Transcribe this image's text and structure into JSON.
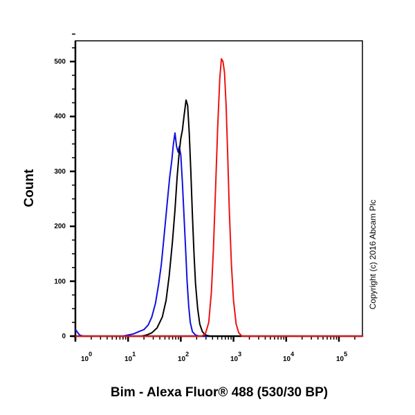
{
  "chart_data": {
    "type": "line",
    "title": "",
    "xlabel": "Bim - Alexa Fluor® 488 (530/30 BP)",
    "ylabel": "Count",
    "xscale": "log",
    "x_tick_labels": [
      "10^0",
      "10^1",
      "10^2",
      "10^3",
      "10^4",
      "10^5"
    ],
    "y_ticks": [
      0,
      100,
      200,
      300,
      400,
      500
    ],
    "ylim": [
      0,
      550
    ],
    "xlim_log10": [
      0,
      5.46
    ],
    "grid": false,
    "legend": null,
    "annotation": "Copyright (c) 2016 Abcam Plc",
    "series": [
      {
        "name": "blue",
        "color": "#1010e0",
        "points_log10x_count": [
          [
            0.0,
            12
          ],
          [
            0.08,
            2
          ],
          [
            0.15,
            0
          ],
          [
            0.9,
            0
          ],
          [
            1.0,
            2
          ],
          [
            1.1,
            4
          ],
          [
            1.2,
            8
          ],
          [
            1.3,
            12
          ],
          [
            1.38,
            20
          ],
          [
            1.45,
            35
          ],
          [
            1.52,
            60
          ],
          [
            1.58,
            95
          ],
          [
            1.63,
            130
          ],
          [
            1.67,
            170
          ],
          [
            1.71,
            210
          ],
          [
            1.75,
            250
          ],
          [
            1.79,
            290
          ],
          [
            1.83,
            320
          ],
          [
            1.86,
            350
          ],
          [
            1.89,
            370
          ],
          [
            1.92,
            345
          ],
          [
            1.95,
            335
          ],
          [
            1.97,
            345
          ],
          [
            2.0,
            330
          ],
          [
            2.03,
            280
          ],
          [
            2.06,
            220
          ],
          [
            2.09,
            160
          ],
          [
            2.12,
            100
          ],
          [
            2.15,
            55
          ],
          [
            2.18,
            25
          ],
          [
            2.22,
            8
          ],
          [
            2.28,
            2
          ],
          [
            2.35,
            0
          ],
          [
            5.46,
            0
          ]
        ]
      },
      {
        "name": "black",
        "color": "#000000",
        "points_log10x_count": [
          [
            0.0,
            0
          ],
          [
            1.25,
            0
          ],
          [
            1.35,
            2
          ],
          [
            1.45,
            6
          ],
          [
            1.55,
            15
          ],
          [
            1.65,
            35
          ],
          [
            1.72,
            65
          ],
          [
            1.78,
            110
          ],
          [
            1.84,
            170
          ],
          [
            1.89,
            230
          ],
          [
            1.93,
            290
          ],
          [
            1.97,
            335
          ],
          [
            2.0,
            360
          ],
          [
            2.03,
            375
          ],
          [
            2.06,
            400
          ],
          [
            2.1,
            430
          ],
          [
            2.13,
            420
          ],
          [
            2.16,
            370
          ],
          [
            2.19,
            300
          ],
          [
            2.22,
            220
          ],
          [
            2.25,
            150
          ],
          [
            2.28,
            95
          ],
          [
            2.32,
            50
          ],
          [
            2.36,
            22
          ],
          [
            2.41,
            8
          ],
          [
            2.47,
            2
          ],
          [
            2.55,
            0
          ],
          [
            5.46,
            0
          ]
        ]
      },
      {
        "name": "red",
        "color": "#ee1111",
        "points_log10x_count": [
          [
            0.0,
            0
          ],
          [
            2.4,
            0
          ],
          [
            2.47,
            5
          ],
          [
            2.53,
            25
          ],
          [
            2.58,
            80
          ],
          [
            2.62,
            160
          ],
          [
            2.66,
            270
          ],
          [
            2.7,
            380
          ],
          [
            2.74,
            470
          ],
          [
            2.77,
            505
          ],
          [
            2.8,
            500
          ],
          [
            2.83,
            480
          ],
          [
            2.86,
            420
          ],
          [
            2.89,
            330
          ],
          [
            2.92,
            230
          ],
          [
            2.96,
            130
          ],
          [
            3.0,
            65
          ],
          [
            3.05,
            22
          ],
          [
            3.1,
            6
          ],
          [
            3.16,
            0
          ],
          [
            5.46,
            0
          ]
        ]
      }
    ]
  },
  "axes": {
    "y_labels": [
      "0",
      "100",
      "200",
      "300",
      "400",
      "500"
    ],
    "x_labels": [
      {
        "base": "10",
        "exp": "0"
      },
      {
        "base": "10",
        "exp": "1"
      },
      {
        "base": "10",
        "exp": "2"
      },
      {
        "base": "10",
        "exp": "3"
      },
      {
        "base": "10",
        "exp": "4"
      },
      {
        "base": "10",
        "exp": "5"
      }
    ],
    "xlabel": "Bim - Alexa Fluor® 488 (530/30 BP)",
    "ylabel": "Count"
  },
  "annotation": "Copyright (c) 2016 Abcam Plc"
}
